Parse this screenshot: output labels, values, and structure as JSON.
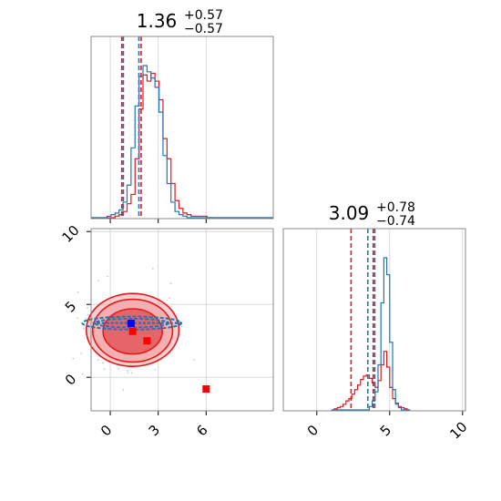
{
  "colors": {
    "red": "#e31a1c",
    "blue": "#1f77b4",
    "grid": "#d0d0d0",
    "red_fill_outer": "#f4a5a6",
    "red_fill_inner": "#e04548",
    "marker_red": "#ff0000",
    "marker_blue": "#0000ff"
  },
  "chart_data": {
    "type": "corner",
    "panels": [
      {
        "kind": "histogram",
        "title": {
          "main": "1.36",
          "sup": "+0.57",
          "sub": "−0.57"
        },
        "xlim": [
          -1.2,
          10.2
        ],
        "x_ticks": [
          0,
          3,
          6
        ],
        "x_tick_labels": [],
        "bins": {
          "start": -1.2,
          "width": 0.25
        },
        "series": [
          {
            "name": "red",
            "color": "red",
            "counts": [
              0,
              0,
              0,
              0,
              0,
              0,
              1,
              2,
              4,
              9,
              15,
              38,
              70,
              92,
              88,
              93,
              88,
              76,
              51,
              38,
              22,
              11,
              6,
              3,
              2,
              1,
              1,
              1,
              1,
              0,
              0,
              0,
              0,
              0,
              0,
              0,
              0,
              0,
              0,
              0,
              0,
              0,
              0,
              0,
              0,
              0
            ]
          },
          {
            "name": "blue",
            "color": "blue",
            "counts": [
              0,
              0,
              0,
              0,
              1,
              2,
              3,
              5,
              10,
              21,
              45,
              72,
              91,
              98,
              94,
              90,
              84,
              68,
              40,
              22,
              10,
              4,
              2,
              1,
              0,
              0,
              0,
              0,
              0,
              0,
              0,
              0,
              0,
              0,
              0,
              0,
              0,
              0,
              0,
              0,
              0,
              0,
              0,
              0,
              0,
              0
            ]
          }
        ],
        "quantile_lines": [
          {
            "color": "red",
            "x": [
              0.72,
              1.93
            ]
          },
          {
            "color": "blue",
            "x": [
              0.82,
              1.79
            ]
          }
        ]
      },
      {
        "kind": "scatter_contour",
        "xlim": [
          -1.2,
          10.2
        ],
        "ylim": [
          -2.3,
          10.2
        ],
        "x_ticks": [
          0,
          3,
          6
        ],
        "x_tick_labels": [
          "0",
          "3",
          "6"
        ],
        "y_ticks": [
          0,
          5,
          10
        ],
        "y_tick_labels": [
          "0",
          "5",
          "10"
        ],
        "red_contours": [
          {
            "cx": 1.4,
            "cy": 3.25,
            "rx": 2.9,
            "ry": 2.5,
            "fill": "red_fill_outer"
          },
          {
            "cx": 1.4,
            "cy": 3.2,
            "rx": 2.5,
            "ry": 2.15,
            "fill": "red_fill_outer"
          },
          {
            "cx": 1.4,
            "cy": 3.15,
            "rx": 1.85,
            "ry": 1.55,
            "fill": "red_fill_inner"
          }
        ],
        "blue_contours": [
          {
            "cx": 1.35,
            "cy": 3.72,
            "rx": 3.1,
            "ry": 0.45
          },
          {
            "cx": 1.35,
            "cy": 3.72,
            "rx": 2.3,
            "ry": 0.3
          }
        ],
        "markers": [
          {
            "x": 1.3,
            "y": 3.7,
            "color": "marker_blue"
          },
          {
            "x": 1.4,
            "y": 3.15,
            "color": "marker_red"
          },
          {
            "x": 2.3,
            "y": 2.5,
            "color": "marker_red"
          },
          {
            "x": 6.0,
            "y": -0.8,
            "color": "marker_red"
          }
        ]
      },
      {
        "kind": "histogram",
        "title": {
          "main": "3.09",
          "sup": "+0.78",
          "sub": "−0.74"
        },
        "xlim": [
          -2.3,
          10.2
        ],
        "x_ticks": [
          0,
          5,
          10
        ],
        "x_tick_labels": [
          "0",
          "5",
          "10"
        ],
        "bins": {
          "start": 1.0,
          "width": 0.2
        },
        "series": [
          {
            "name": "red",
            "color": "red",
            "counts": [
              0,
              1,
              2,
              3,
              5,
              8,
              10,
              14,
              18,
              22,
              27,
              30,
              31,
              28,
              24,
              20,
              26,
              40,
              52,
              38,
              20,
              10,
              6,
              3,
              2,
              1,
              0
            ]
          },
          {
            "name": "blue",
            "color": "blue",
            "counts": [
              0,
              0,
              0,
              0,
              0,
              0,
              0,
              0,
              0,
              0,
              0,
              0,
              0,
              3,
              8,
              16,
              40,
              95,
              135,
              120,
              60,
              18,
              5,
              2,
              0,
              0,
              0
            ]
          }
        ],
        "quantile_lines": [
          {
            "color": "red",
            "x": [
              2.35,
              3.87
            ]
          },
          {
            "color": "blue",
            "x": [
              3.5,
              3.98
            ]
          }
        ]
      }
    ]
  }
}
